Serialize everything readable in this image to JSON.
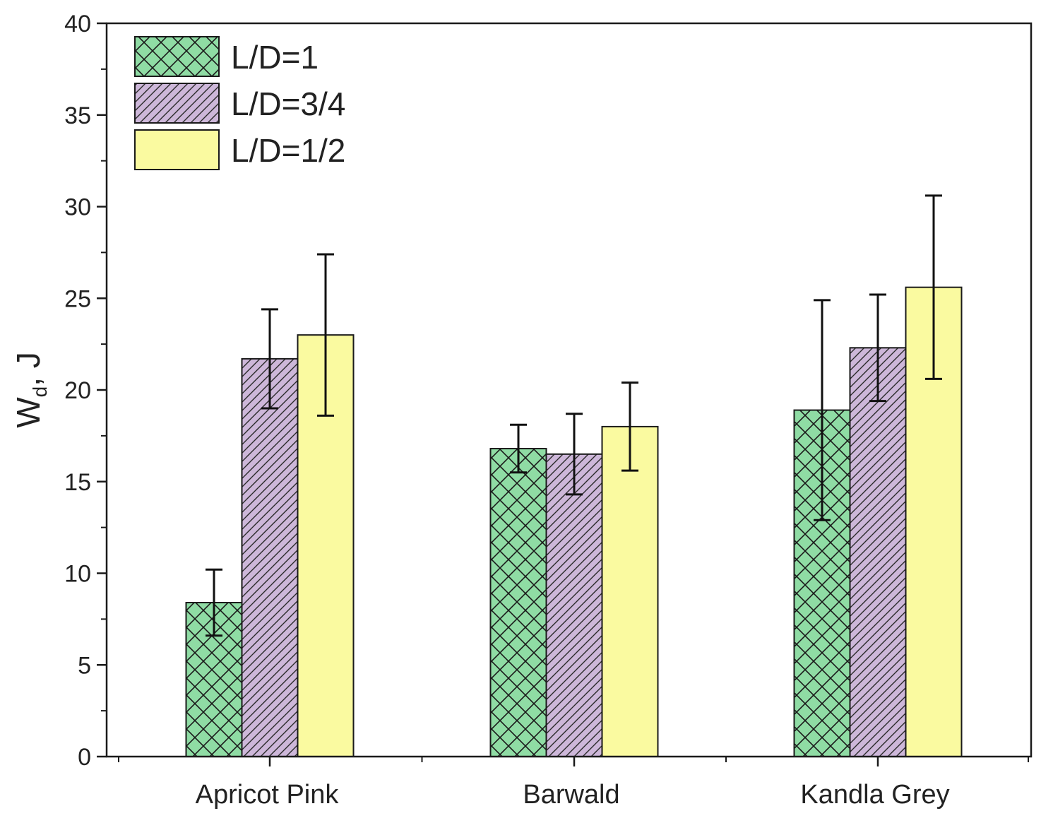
{
  "chart_data": {
    "type": "bar",
    "title": "",
    "xlabel": "",
    "ylabel": "W",
    "ylabel_subscript": "d",
    "ylabel_unit": ", J",
    "ylim": [
      0,
      40
    ],
    "yticks": [
      0,
      5,
      10,
      15,
      20,
      25,
      30,
      35,
      40
    ],
    "categories": [
      "Apricot Pink",
      "Barwald",
      "Kandla Grey"
    ],
    "series": [
      {
        "name": "L/D=1",
        "color": "#8fdca4",
        "pattern": "crosshatch",
        "values": [
          8.4,
          16.8,
          18.9
        ],
        "errors": [
          1.8,
          1.3,
          6.0
        ]
      },
      {
        "name": "L/D=3/4",
        "color": "#cdb7d9",
        "pattern": "diagonal",
        "values": [
          21.7,
          16.5,
          22.3
        ],
        "errors": [
          2.7,
          2.2,
          2.9
        ]
      },
      {
        "name": "L/D=1/2",
        "color": "#fafaa0",
        "pattern": "none",
        "values": [
          23.0,
          18.0,
          25.6
        ],
        "errors": [
          4.4,
          2.4,
          5.0
        ]
      }
    ],
    "legend_position": "top-left",
    "grid": false
  }
}
